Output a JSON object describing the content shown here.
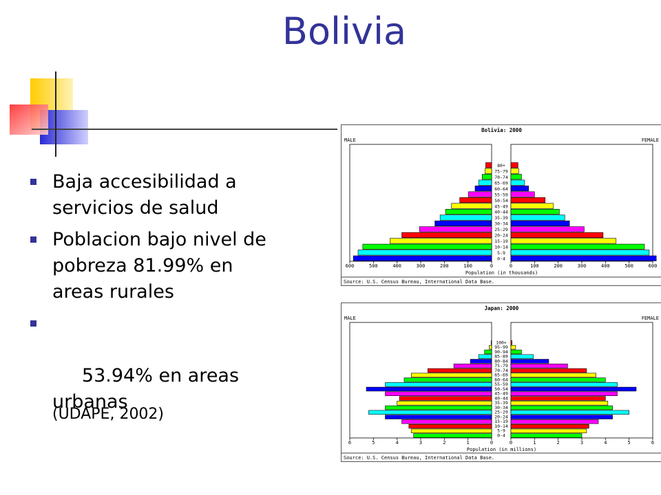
{
  "slide": {
    "title": "Bolivia",
    "bullets": [
      "Baja accesibilidad a servicios de salud",
      "Poblacion bajo nivel de pobreza 81.99% en areas rurales",
      " 53.94% en areas urbanas"
    ],
    "source_note": "(UDAPE, 2002)"
  },
  "chart_data": [
    {
      "type": "bar",
      "title": "Bolivia: 2000",
      "left_label": "MALE",
      "right_label": "FEMALE",
      "xlabel": "Population (in thousands)",
      "source": "Source: U.S. Census Bureau, International Data Base.",
      "xlim": [
        0,
        600
      ],
      "ticks": [
        "600",
        "500",
        "400",
        "300",
        "200",
        "100",
        "0",
        "0",
        "100",
        "200",
        "300",
        "400",
        "500",
        "600"
      ],
      "categories": [
        "80+",
        "75-79",
        "70-74",
        "65-69",
        "60-64",
        "55-59",
        "50-54",
        "45-49",
        "40-44",
        "35-39",
        "30-34",
        "25-29",
        "20-24",
        "15-19",
        "10-14",
        "5-9",
        "0-4"
      ],
      "series": [
        {
          "name": "MALE",
          "values": [
            25,
            28,
            40,
            55,
            70,
            98,
            135,
            170,
            195,
            218,
            240,
            305,
            380,
            430,
            545,
            565,
            585
          ]
        },
        {
          "name": "FEMALE",
          "values": [
            30,
            33,
            45,
            58,
            75,
            100,
            145,
            180,
            205,
            228,
            248,
            310,
            390,
            445,
            565,
            585,
            615
          ]
        }
      ],
      "colors": [
        "#ff0000",
        "#ffff00",
        "#00ff00",
        "#00ffff",
        "#0000ff",
        "#ff00ff",
        "#ff0000",
        "#ffff00",
        "#00ff00",
        "#00ffff",
        "#0000ff",
        "#ff00ff",
        "#ff0000",
        "#ffff00",
        "#00ff00",
        "#00ffff",
        "#0000ff"
      ]
    },
    {
      "type": "bar",
      "title": "Japan: 2000",
      "left_label": "MALE",
      "right_label": "FEMALE",
      "xlabel": "Population (in millions)",
      "source": "Source: U.S. Census Bureau, International Data Base.",
      "xlim": [
        0,
        6
      ],
      "ticks": [
        "6",
        "5",
        "4",
        "3",
        "2",
        "1",
        "0",
        "0",
        "1",
        "2",
        "3",
        "4",
        "5",
        "6"
      ],
      "categories": [
        "100+",
        "95-99",
        "90-94",
        "85-89",
        "80-84",
        "75-79",
        "70-74",
        "65-69",
        "60-64",
        "55-59",
        "50-54",
        "45-49",
        "40-44",
        "35-39",
        "30-34",
        "25-29",
        "20-24",
        "15-19",
        "10-14",
        "5-9",
        "0-4"
      ],
      "series": [
        {
          "name": "MALE",
          "values": [
            0.02,
            0.1,
            0.3,
            0.55,
            0.9,
            1.6,
            2.7,
            3.4,
            3.7,
            4.5,
            5.3,
            4.5,
            3.9,
            4.0,
            4.5,
            5.2,
            4.5,
            3.8,
            3.5,
            3.4,
            3.3
          ]
        },
        {
          "name": "FEMALE",
          "values": [
            0.05,
            0.2,
            0.45,
            0.95,
            1.6,
            2.4,
            3.2,
            3.6,
            4.0,
            4.5,
            5.3,
            4.5,
            4.0,
            4.1,
            4.3,
            5.0,
            4.3,
            3.7,
            3.3,
            3.2,
            3.0
          ]
        }
      ],
      "colors": [
        "#ff0000",
        "#ffff00",
        "#00ff00",
        "#00ffff",
        "#0000ff",
        "#ff00ff",
        "#ff0000",
        "#ffff00",
        "#00ff00",
        "#00ffff",
        "#0000ff",
        "#ff00ff",
        "#ff0000",
        "#ffff00",
        "#00ff00",
        "#00ffff",
        "#0000ff",
        "#ff00ff",
        "#ff0000",
        "#ffff00",
        "#00ff00"
      ]
    }
  ]
}
